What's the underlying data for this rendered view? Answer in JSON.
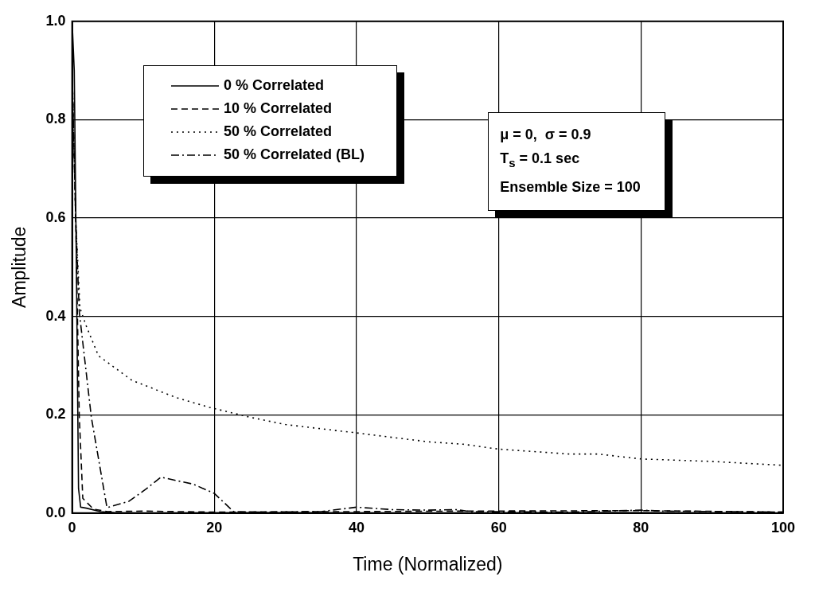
{
  "chart_data": {
    "type": "line",
    "xlabel": "Time (Normalized)",
    "ylabel": "Amplitude",
    "xlim": [
      0,
      100
    ],
    "ylim": [
      0,
      1
    ],
    "xticks": [
      0,
      20,
      40,
      60,
      80,
      100
    ],
    "yticks": [
      {
        "value": 0,
        "label": "0.0"
      },
      0.2,
      0.4,
      0.6,
      0.8,
      {
        "value": 1,
        "label": "1.0"
      }
    ],
    "grid": true,
    "legend": "top left",
    "marker": "none",
    "annotations": [
      "μ = 0,  σ = 0.9",
      "T$_{s}$ = 0.1 sec",
      "Ensemble Size = 100"
    ],
    "series": [
      {
        "name": "0 % Correlated",
        "color": "#000000",
        "line_style": "solid",
        "x": [
          0,
          0.3,
          0.6,
          0.9,
          1.2,
          2,
          4,
          6,
          10,
          30,
          50,
          70,
          100
        ],
        "values": [
          1.0,
          0.9,
          0.5,
          0.05,
          0.012,
          0.01,
          0.003,
          0.001,
          0,
          0.001,
          0,
          0.001,
          0
        ]
      },
      {
        "name": "10 % Correlated",
        "color": "#000000",
        "line_style": "dashed",
        "x": [
          0,
          0.5,
          1,
          1.5,
          3,
          5,
          10,
          20,
          40,
          55,
          80,
          100
        ],
        "values": [
          0.9,
          0.6,
          0.2,
          0.03,
          0.008,
          0.003,
          0.004,
          0.002,
          0.003,
          0.004,
          0.005,
          0.002
        ]
      },
      {
        "name": "50 % Correlated",
        "color": "#000000",
        "line_style": "dotted",
        "x": [
          0,
          0.5,
          1.1,
          2,
          3.7,
          8.4,
          14.6,
          19.3,
          25,
          30,
          40,
          50,
          55,
          60,
          70,
          74,
          80,
          90,
          100
        ],
        "values": [
          0.9,
          0.6,
          0.417,
          0.38,
          0.32,
          0.27,
          0.235,
          0.215,
          0.195,
          0.18,
          0.163,
          0.145,
          0.14,
          0.13,
          0.12,
          0.12,
          0.11,
          0.105,
          0.097
        ]
      },
      {
        "name": "50 % Correlated (BL)",
        "color": "#000000",
        "line_style": "dashdot",
        "x": [
          0,
          0.5,
          1,
          2.7,
          4.9,
          8,
          10.5,
          12.5,
          15,
          17,
          20,
          22.7,
          26,
          35,
          40,
          45,
          50,
          54,
          56,
          70,
          80,
          83,
          100
        ],
        "values": [
          0.9,
          0.6,
          0.41,
          0.195,
          0.011,
          0.024,
          0.05,
          0.073,
          0.065,
          0.059,
          0.04,
          0.003,
          0.002,
          0.003,
          0.012,
          0.007,
          0.006,
          0.007,
          0.003,
          0.002,
          0.006,
          0.004,
          0.002
        ]
      }
    ]
  }
}
